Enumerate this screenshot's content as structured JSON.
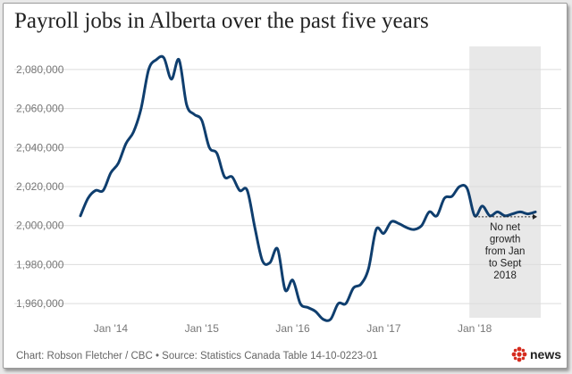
{
  "chart_data": {
    "type": "line",
    "title": "Payroll jobs in Alberta over the past five years",
    "x_ticks": [
      "Jan '14",
      "Jan '15",
      "Jan '16",
      "Jan '17",
      "Jan '18"
    ],
    "y_ticks": [
      "1,960,000",
      "1,980,000",
      "2,000,000",
      "2,020,000",
      "2,040,000",
      "2,060,000",
      "2,080,000"
    ],
    "ylim": [
      1950000,
      2090000
    ],
    "grid": "horizontal",
    "series_color": "#0f3e6e",
    "series": [
      {
        "name": "",
        "x": [
          "2013-09",
          "2013-10",
          "2013-11",
          "2013-12",
          "2014-01",
          "2014-02",
          "2014-03",
          "2014-04",
          "2014-05",
          "2014-06",
          "2014-07",
          "2014-08",
          "2014-09",
          "2014-10",
          "2014-11",
          "2014-12",
          "2015-01",
          "2015-02",
          "2015-03",
          "2015-04",
          "2015-05",
          "2015-06",
          "2015-07",
          "2015-08",
          "2015-09",
          "2015-10",
          "2015-11",
          "2015-12",
          "2016-01",
          "2016-02",
          "2016-03",
          "2016-04",
          "2016-05",
          "2016-06",
          "2016-07",
          "2016-08",
          "2016-09",
          "2016-10",
          "2016-11",
          "2016-12",
          "2017-01",
          "2017-02",
          "2017-03",
          "2017-04",
          "2017-05",
          "2017-06",
          "2017-07",
          "2017-08",
          "2017-09",
          "2017-10",
          "2017-11",
          "2017-12",
          "2018-01",
          "2018-02",
          "2018-03",
          "2018-04",
          "2018-05",
          "2018-06",
          "2018-07",
          "2018-08",
          "2018-09"
        ],
        "values": [
          2005000,
          2014000,
          2018000,
          2018000,
          2027000,
          2032000,
          2042000,
          2048000,
          2060000,
          2080000,
          2085000,
          2086000,
          2075000,
          2085000,
          2062000,
          2057000,
          2054000,
          2040000,
          2037000,
          2025000,
          2025000,
          2018000,
          2018000,
          1999000,
          1982000,
          1981000,
          1988000,
          1967000,
          1972000,
          1960000,
          1958000,
          1956000,
          1952000,
          1952000,
          1960000,
          1960000,
          1968000,
          1970000,
          1978000,
          1998000,
          1996000,
          2002000,
          2001000,
          1999000,
          1998000,
          2000000,
          2007000,
          2005000,
          2014000,
          2015000,
          2020000,
          2019000,
          2005000,
          2010000,
          2005000,
          2007000,
          2005000,
          2006000,
          2007000,
          2006000,
          2007000
        ]
      }
    ],
    "highlight": {
      "from": "2018-01",
      "to": "2018-09",
      "color": "#e8e8e8"
    },
    "annotation": {
      "lines": [
        "No net",
        "growth",
        "from Jan",
        "to Sept",
        "2018"
      ]
    }
  },
  "source": "Chart: Robson Fletcher / CBC • Source: Statistics Canada Table 14-10-0223-01",
  "logo": {
    "word": "news",
    "color": "#d52b1e"
  }
}
